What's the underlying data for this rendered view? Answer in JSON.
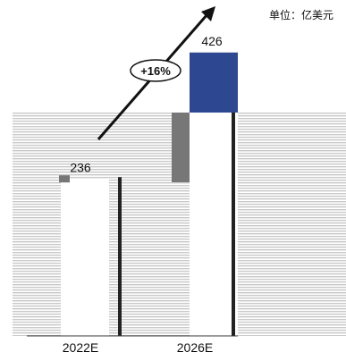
{
  "unit_label": "单位：亿美元",
  "growth_label": "+16%",
  "chart_data": {
    "type": "bar",
    "title": "",
    "xlabel": "",
    "ylabel": "",
    "categories": [
      "2022E",
      "2026E"
    ],
    "values": [
      236,
      426
    ],
    "data_labels": [
      "236",
      "426"
    ],
    "ylim": [
      0,
      470
    ],
    "grid": false,
    "legend": "none",
    "annotation": "+16%",
    "colors": {
      "highlight_bar": "#2e4791",
      "base_bar": "#ffffff",
      "stripes": "#c8c8c8",
      "text": "#111111"
    }
  }
}
